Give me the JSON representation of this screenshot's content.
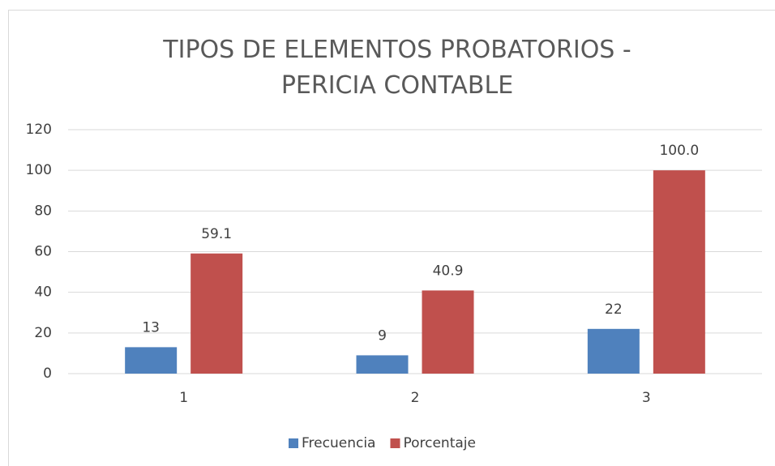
{
  "chart_data": {
    "type": "bar",
    "title": "TIPOS DE ELEMENTOS PROBATORIOS - PERICIA CONTABLE",
    "categories": [
      "1",
      "2",
      "3"
    ],
    "series": [
      {
        "name": "Frecuencia",
        "color": "#4f81bd",
        "values": [
          13,
          9,
          22
        ]
      },
      {
        "name": "Porcentaje",
        "color": "#c0504d",
        "values": [
          59.1,
          40.9,
          100
        ],
        "value_labels": [
          "59.1",
          "40.9",
          "100.0"
        ]
      }
    ],
    "ylim": [
      0,
      120
    ],
    "yticks": [
      0,
      20,
      40,
      60,
      80,
      100,
      120
    ],
    "grid": true,
    "legend": "bottom"
  }
}
